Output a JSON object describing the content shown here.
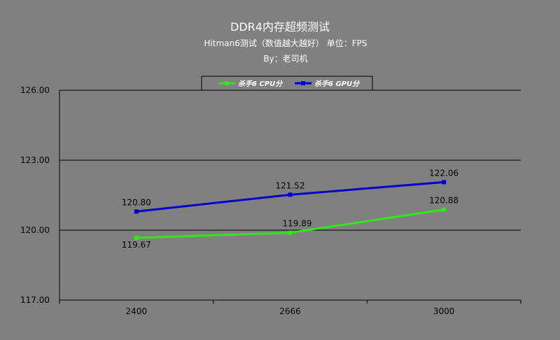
{
  "chart_data": {
    "type": "line",
    "title": "DDR4内存超频测试",
    "subtitle": "Hitman6测试（数值越大越好） 单位：FPS",
    "subtitle2": "By：老司机",
    "categories": [
      "2400",
      "2666",
      "3000"
    ],
    "series": [
      {
        "name": "杀手6 CPU分",
        "color": "#33e61c",
        "values": [
          119.67,
          119.89,
          120.88
        ],
        "labels": [
          "119.67",
          "119.89",
          "120.88"
        ]
      },
      {
        "name": "杀手6 GPU分",
        "color": "#0000cc",
        "values": [
          120.8,
          121.52,
          122.06
        ],
        "labels": [
          "120.80",
          "121.52",
          "122.06"
        ]
      }
    ],
    "ylim": [
      117,
      126
    ],
    "yticks": [
      "117.00",
      "120.00",
      "123.00",
      "126.00"
    ],
    "grid": true,
    "legend": "top-center"
  }
}
